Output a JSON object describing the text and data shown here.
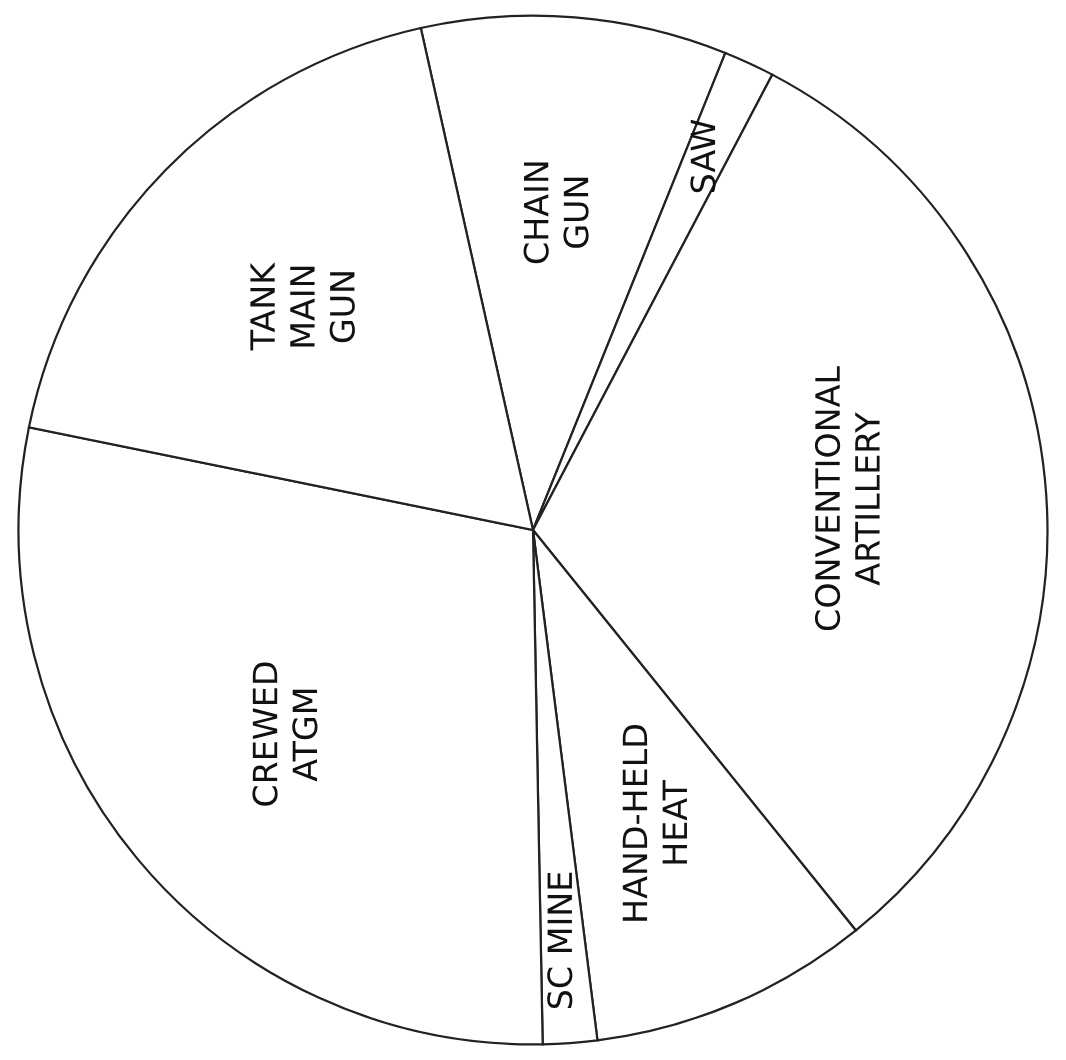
{
  "chart_data": {
    "type": "pie",
    "categories": [
      "CHAIN\nGUN",
      "SAW",
      "CONVENTIONAL\nARTILLERY",
      "HAND-HELD\nHEAT",
      "SC MINE",
      "CREWED\nATGM",
      "TANK\nMAIN\nGUN"
    ],
    "values": [
      9.6,
      1.6,
      31.5,
      8.8,
      1.7,
      28.5,
      18.3
    ],
    "colors": [
      "#ffffff",
      "#ffffff",
      "#ffffff",
      "#ffffff",
      "#ffffff",
      "#ffffff",
      "#ffffff"
    ]
  }
}
